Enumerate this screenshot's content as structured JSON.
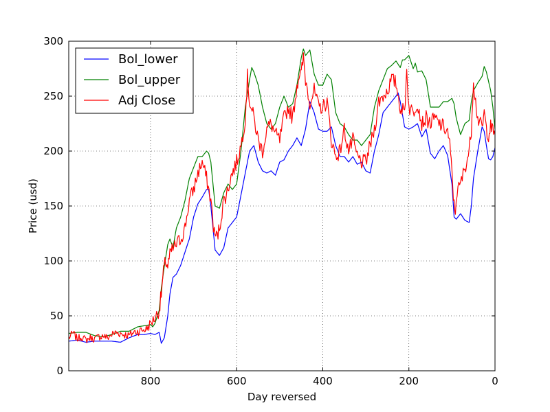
{
  "chart_data": {
    "type": "line",
    "title": "",
    "xlabel": "Day reversed",
    "ylabel": "Price (usd)",
    "xlim": [
      990,
      0
    ],
    "ylim": [
      0,
      300
    ],
    "x_reversed": true,
    "grid": true,
    "legend_position": "top-left",
    "xticks": [
      800,
      600,
      400,
      200,
      0
    ],
    "xtick_labels": [
      "800",
      "600",
      "400",
      "200",
      "0"
    ],
    "yticks": [
      0,
      50,
      100,
      150,
      200,
      250,
      300
    ],
    "ytick_labels": [
      "0",
      "50",
      "100",
      "150",
      "200",
      "250",
      "300"
    ],
    "series": [
      {
        "name": "Bol_lower",
        "color": "#0000ff",
        "noise": 0,
        "points": [
          [
            990,
            27
          ],
          [
            970,
            28
          ],
          [
            950,
            26
          ],
          [
            930,
            27
          ],
          [
            910,
            27
          ],
          [
            890,
            27
          ],
          [
            870,
            26
          ],
          [
            850,
            30
          ],
          [
            830,
            33
          ],
          [
            815,
            33
          ],
          [
            800,
            34
          ],
          [
            790,
            33
          ],
          [
            780,
            35
          ],
          [
            775,
            25
          ],
          [
            768,
            30
          ],
          [
            760,
            50
          ],
          [
            755,
            70
          ],
          [
            748,
            85
          ],
          [
            740,
            88
          ],
          [
            730,
            96
          ],
          [
            720,
            108
          ],
          [
            710,
            120
          ],
          [
            700,
            140
          ],
          [
            690,
            152
          ],
          [
            680,
            158
          ],
          [
            670,
            165
          ],
          [
            665,
            165
          ],
          [
            660,
            150
          ],
          [
            650,
            110
          ],
          [
            640,
            105
          ],
          [
            630,
            112
          ],
          [
            620,
            130
          ],
          [
            610,
            135
          ],
          [
            600,
            140
          ],
          [
            590,
            160
          ],
          [
            580,
            180
          ],
          [
            570,
            200
          ],
          [
            560,
            205
          ],
          [
            550,
            190
          ],
          [
            540,
            182
          ],
          [
            530,
            180
          ],
          [
            520,
            182
          ],
          [
            510,
            178
          ],
          [
            500,
            190
          ],
          [
            490,
            192
          ],
          [
            480,
            200
          ],
          [
            470,
            205
          ],
          [
            460,
            212
          ],
          [
            450,
            205
          ],
          [
            440,
            220
          ],
          [
            430,
            245
          ],
          [
            420,
            235
          ],
          [
            410,
            220
          ],
          [
            400,
            218
          ],
          [
            390,
            218
          ],
          [
            380,
            222
          ],
          [
            370,
            205
          ],
          [
            360,
            195
          ],
          [
            350,
            195
          ],
          [
            340,
            190
          ],
          [
            330,
            195
          ],
          [
            320,
            188
          ],
          [
            310,
            190
          ],
          [
            300,
            182
          ],
          [
            290,
            180
          ],
          [
            280,
            200
          ],
          [
            270,
            215
          ],
          [
            260,
            235
          ],
          [
            250,
            240
          ],
          [
            240,
            245
          ],
          [
            230,
            250
          ],
          [
            225,
            253
          ],
          [
            220,
            245
          ],
          [
            210,
            222
          ],
          [
            200,
            220
          ],
          [
            190,
            222
          ],
          [
            180,
            225
          ],
          [
            170,
            213
          ],
          [
            160,
            220
          ],
          [
            150,
            198
          ],
          [
            140,
            193
          ],
          [
            130,
            200
          ],
          [
            120,
            205
          ],
          [
            110,
            196
          ],
          [
            100,
            170
          ],
          [
            95,
            140
          ],
          [
            90,
            138
          ],
          [
            80,
            143
          ],
          [
            70,
            137
          ],
          [
            60,
            135
          ],
          [
            55,
            150
          ],
          [
            50,
            175
          ],
          [
            40,
            200
          ],
          [
            30,
            222
          ],
          [
            25,
            218
          ],
          [
            20,
            205
          ],
          [
            15,
            193
          ],
          [
            10,
            192
          ],
          [
            5,
            195
          ],
          [
            0,
            203
          ]
        ]
      },
      {
        "name": "Bol_upper",
        "color": "#008000",
        "noise": 0,
        "points": [
          [
            990,
            34
          ],
          [
            970,
            35
          ],
          [
            950,
            35
          ],
          [
            930,
            32
          ],
          [
            910,
            31
          ],
          [
            890,
            33
          ],
          [
            870,
            36
          ],
          [
            850,
            36
          ],
          [
            830,
            40
          ],
          [
            815,
            41
          ],
          [
            800,
            42
          ],
          [
            795,
            40
          ],
          [
            790,
            43
          ],
          [
            780,
            55
          ],
          [
            775,
            75
          ],
          [
            768,
            95
          ],
          [
            760,
            115
          ],
          [
            755,
            120
          ],
          [
            748,
            112
          ],
          [
            740,
            130
          ],
          [
            730,
            140
          ],
          [
            720,
            155
          ],
          [
            710,
            175
          ],
          [
            700,
            185
          ],
          [
            690,
            195
          ],
          [
            680,
            195
          ],
          [
            670,
            200
          ],
          [
            665,
            198
          ],
          [
            660,
            190
          ],
          [
            650,
            150
          ],
          [
            640,
            148
          ],
          [
            630,
            162
          ],
          [
            620,
            170
          ],
          [
            610,
            165
          ],
          [
            600,
            170
          ],
          [
            590,
            200
          ],
          [
            580,
            240
          ],
          [
            570,
            265
          ],
          [
            565,
            276
          ],
          [
            560,
            272
          ],
          [
            550,
            260
          ],
          [
            540,
            240
          ],
          [
            530,
            225
          ],
          [
            520,
            220
          ],
          [
            510,
            225
          ],
          [
            500,
            240
          ],
          [
            490,
            250
          ],
          [
            480,
            240
          ],
          [
            470,
            243
          ],
          [
            460,
            260
          ],
          [
            450,
            285
          ],
          [
            445,
            293
          ],
          [
            440,
            287
          ],
          [
            430,
            292
          ],
          [
            420,
            270
          ],
          [
            410,
            260
          ],
          [
            400,
            260
          ],
          [
            390,
            270
          ],
          [
            380,
            265
          ],
          [
            370,
            235
          ],
          [
            360,
            225
          ],
          [
            350,
            222
          ],
          [
            340,
            215
          ],
          [
            330,
            210
          ],
          [
            320,
            210
          ],
          [
            310,
            205
          ],
          [
            300,
            210
          ],
          [
            290,
            215
          ],
          [
            280,
            240
          ],
          [
            270,
            255
          ],
          [
            260,
            265
          ],
          [
            250,
            275
          ],
          [
            240,
            278
          ],
          [
            230,
            282
          ],
          [
            220,
            276
          ],
          [
            215,
            283
          ],
          [
            210,
            283
          ],
          [
            200,
            287
          ],
          [
            190,
            275
          ],
          [
            185,
            280
          ],
          [
            180,
            272
          ],
          [
            170,
            273
          ],
          [
            160,
            265
          ],
          [
            150,
            240
          ],
          [
            140,
            240
          ],
          [
            130,
            240
          ],
          [
            120,
            245
          ],
          [
            110,
            245
          ],
          [
            100,
            248
          ],
          [
            95,
            243
          ],
          [
            90,
            230
          ],
          [
            80,
            215
          ],
          [
            70,
            225
          ],
          [
            60,
            228
          ],
          [
            55,
            245
          ],
          [
            50,
            255
          ],
          [
            40,
            262
          ],
          [
            30,
            268
          ],
          [
            25,
            277
          ],
          [
            20,
            272
          ],
          [
            10,
            255
          ],
          [
            5,
            240
          ],
          [
            0,
            220
          ]
        ]
      },
      {
        "name": "Adj Close",
        "color": "#ff0000",
        "noise": 1,
        "points": [
          [
            990,
            30
          ],
          [
            980,
            34
          ],
          [
            970,
            29
          ],
          [
            960,
            31
          ],
          [
            950,
            28
          ],
          [
            940,
            30
          ],
          [
            930,
            29
          ],
          [
            920,
            31
          ],
          [
            910,
            32
          ],
          [
            900,
            30
          ],
          [
            890,
            33
          ],
          [
            880,
            35
          ],
          [
            870,
            34
          ],
          [
            860,
            33
          ],
          [
            850,
            32
          ],
          [
            840,
            35
          ],
          [
            830,
            36
          ],
          [
            820,
            37
          ],
          [
            810,
            38
          ],
          [
            800,
            43
          ],
          [
            790,
            48
          ],
          [
            780,
            55
          ],
          [
            775,
            70
          ],
          [
            770,
            90
          ],
          [
            765,
            100
          ],
          [
            760,
            95
          ],
          [
            755,
            105
          ],
          [
            750,
            110
          ],
          [
            740,
            115
          ],
          [
            730,
            120
          ],
          [
            720,
            130
          ],
          [
            710,
            155
          ],
          [
            700,
            165
          ],
          [
            690,
            180
          ],
          [
            680,
            190
          ],
          [
            670,
            175
          ],
          [
            660,
            155
          ],
          [
            652,
            125
          ],
          [
            645,
            122
          ],
          [
            640,
            130
          ],
          [
            630,
            155
          ],
          [
            620,
            165
          ],
          [
            615,
            175
          ],
          [
            610,
            180
          ],
          [
            600,
            190
          ],
          [
            590,
            205
          ],
          [
            580,
            230
          ],
          [
            575,
            268
          ],
          [
            570,
            245
          ],
          [
            560,
            230
          ],
          [
            550,
            210
          ],
          [
            540,
            200
          ],
          [
            530,
            220
          ],
          [
            520,
            225
          ],
          [
            510,
            215
          ],
          [
            500,
            210
          ],
          [
            490,
            230
          ],
          [
            480,
            240
          ],
          [
            470,
            230
          ],
          [
            460,
            260
          ],
          [
            455,
            270
          ],
          [
            450,
            270
          ],
          [
            445,
            285
          ],
          [
            440,
            265
          ],
          [
            430,
            245
          ],
          [
            420,
            255
          ],
          [
            410,
            240
          ],
          [
            400,
            240
          ],
          [
            390,
            245
          ],
          [
            380,
            210
          ],
          [
            370,
            195
          ],
          [
            360,
            200
          ],
          [
            350,
            220
          ],
          [
            340,
            200
          ],
          [
            330,
            210
          ],
          [
            320,
            195
          ],
          [
            310,
            190
          ],
          [
            300,
            190
          ],
          [
            290,
            205
          ],
          [
            280,
            220
          ],
          [
            270,
            245
          ],
          [
            260,
            250
          ],
          [
            250,
            255
          ],
          [
            240,
            265
          ],
          [
            230,
            262
          ],
          [
            220,
            240
          ],
          [
            210,
            235
          ],
          [
            205,
            275
          ],
          [
            200,
            240
          ],
          [
            190,
            235
          ],
          [
            180,
            245
          ],
          [
            170,
            225
          ],
          [
            160,
            230
          ],
          [
            150,
            225
          ],
          [
            140,
            230
          ],
          [
            130,
            225
          ],
          [
            120,
            222
          ],
          [
            110,
            218
          ],
          [
            105,
            205
          ],
          [
            100,
            180
          ],
          [
            95,
            150
          ],
          [
            92,
            145
          ],
          [
            90,
            160
          ],
          [
            80,
            170
          ],
          [
            70,
            185
          ],
          [
            60,
            200
          ],
          [
            55,
            220
          ],
          [
            50,
            265
          ],
          [
            45,
            245
          ],
          [
            40,
            230
          ],
          [
            30,
            220
          ],
          [
            25,
            235
          ],
          [
            20,
            220
          ],
          [
            15,
            215
          ],
          [
            10,
            222
          ],
          [
            5,
            218
          ],
          [
            0,
            215
          ]
        ]
      }
    ]
  }
}
